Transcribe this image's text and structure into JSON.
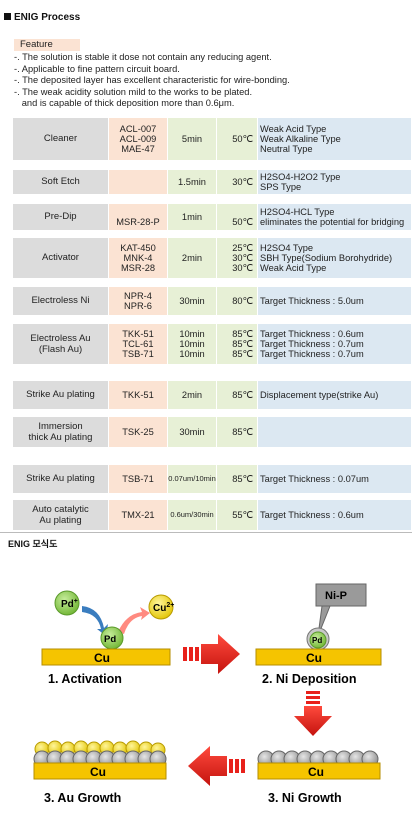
{
  "title": "ENIG  Process",
  "feature": {
    "label": "Feature",
    "lines": [
      "-. The solution is stable it dose not contain any reducing agent.",
      "-. Applicable to fine pattern circuit board.",
      "-. The deposited layer has excellent characteristic for wire-bonding.",
      "-. The weak acidity solution mild to the works to be plated.",
      "   and is capable of thick deposition more than 0.6μm."
    ]
  },
  "rows": [
    {
      "process": [
        "Cleaner"
      ],
      "chem": [
        "ACL-007",
        "ACL-009",
        "MAE-47"
      ],
      "time": [
        "5min"
      ],
      "temp": [
        "",
        "50℃",
        ""
      ],
      "notes": [
        "Weak Acid Type",
        "Weak Alkaline Type",
        "Neutral Type"
      ]
    },
    {
      "process": [
        "Soft Etch"
      ],
      "chem": [
        ""
      ],
      "time": [
        "1.5min"
      ],
      "temp": [
        "30℃"
      ],
      "notes": [
        "H2SO4-H2O2 Type",
        "SPS Type"
      ]
    },
    {
      "process": [
        "Pre-Dip"
      ],
      "chem": [
        "",
        "MSR-28-P"
      ],
      "time": [
        "1min"
      ],
      "temp": [
        "",
        "50℃"
      ],
      "notes": [
        "H2SO4-HCL Type",
        "eliminates the potential for bridging"
      ]
    },
    {
      "process": [
        "Activator"
      ],
      "chem": [
        "KAT-450",
        "MNK-4",
        "MSR-28"
      ],
      "time": [
        "2min"
      ],
      "temp": [
        "25℃",
        "30℃",
        "30℃"
      ],
      "notes": [
        "H2SO4 Type",
        "SBH Type(Sodium Borohydride)",
        "Weak Acid Type"
      ]
    },
    {
      "process": [
        "Electroless Ni"
      ],
      "chem": [
        "NPR-4",
        "NPR-6"
      ],
      "time": [
        "30min"
      ],
      "temp": [
        "80℃"
      ],
      "notes": [
        "Target Thickness : 5.0um"
      ]
    },
    {
      "process": [
        "Electroless Au",
        "(Flash Au)"
      ],
      "chem": [
        "TKK-51",
        "TCL-61",
        "TSB-71"
      ],
      "time": [
        "10min",
        "10min",
        "10min"
      ],
      "temp": [
        "85℃",
        "85℃",
        "85℃"
      ],
      "notes": [
        "Target Thickness : 0.6um",
        "Target Thickness : 0.7um",
        "Target Thickness : 0.7um"
      ]
    },
    {
      "process": [
        "Strike Au plating"
      ],
      "chem": [
        "TKK-51"
      ],
      "time": [
        "2min"
      ],
      "temp": [
        "85℃"
      ],
      "notes": [
        "Displacement type(strike Au)"
      ]
    },
    {
      "process": [
        "Immersion",
        "thick Au plating"
      ],
      "chem": [
        "TSK-25"
      ],
      "time": [
        "30min"
      ],
      "temp": [
        "85℃"
      ],
      "notes": [
        ""
      ]
    },
    {
      "process": [
        "Strike Au plating"
      ],
      "chem": [
        "TSB-71"
      ],
      "time": [
        "0.07um/10min"
      ],
      "temp": [
        "85℃"
      ],
      "notes": [
        "Target Thickness : 0.07um"
      ]
    },
    {
      "process": [
        "Auto catalytic",
        "Au plating"
      ],
      "chem": [
        "TMX-21"
      ],
      "time": [
        "0.6um/30min"
      ],
      "temp": [
        "55℃"
      ],
      "notes": [
        "Target Thickness : 0.6um"
      ]
    }
  ],
  "diagram": {
    "title": "ENIG 모식도",
    "pd_plus": "Pd",
    "pd_sup": "+",
    "cu_plus": "Cu",
    "cu_sup": "2+",
    "pd": "Pd",
    "cu": "Cu",
    "nip": "Ni-P",
    "step1": "1.  Activation",
    "step2": "2. Ni Deposition",
    "step3": "3. Ni Growth",
    "step4": "3. Au Growth",
    "colors": {
      "gold": "#f5c400",
      "red": "#e8211b",
      "green": "#7fc142",
      "blue": "#3a7dbf",
      "pink": "#ff8a80",
      "gray": "#a6a6a6"
    }
  }
}
